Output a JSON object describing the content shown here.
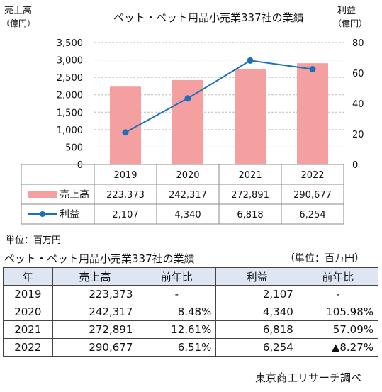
{
  "header": {
    "left_axis_title": "売上高",
    "left_axis_unit": "（億円）",
    "right_axis_title": "利益",
    "right_axis_unit": "（億円）"
  },
  "chart_data": {
    "type": "bar",
    "title": "ペット・ペット用品小売業337社の業績",
    "categories": [
      "2019",
      "2020",
      "2021",
      "2022"
    ],
    "left_axis": {
      "ticks": [
        "0",
        "500",
        "1,000",
        "1,500",
        "2,000",
        "2,500",
        "3,000",
        "3,500"
      ],
      "range": [
        0,
        3500
      ]
    },
    "right_axis": {
      "ticks": [
        "0",
        "20",
        "40",
        "60",
        "80"
      ],
      "range": [
        0,
        80
      ]
    },
    "series": [
      {
        "name": "売上高",
        "kind": "bar",
        "axis": "left",
        "color": "#f4a0a0",
        "values": [
          2233.73,
          2423.17,
          2728.91,
          2906.77
        ],
        "labels": [
          "223,373",
          "242,317",
          "272,891",
          "290,677"
        ]
      },
      {
        "name": "利益",
        "kind": "line",
        "axis": "right",
        "color": "#1f6fb8",
        "values": [
          21.07,
          43.4,
          68.18,
          62.54
        ],
        "labels": [
          "2,107",
          "4,340",
          "6,818",
          "6,254"
        ]
      }
    ],
    "grid": true,
    "unit_note": "単位：百万円"
  },
  "table": {
    "title": "ペット・ペット用品小売業337社の業績",
    "unit": "（単位：百万円）",
    "headers": [
      "年",
      "売上高",
      "前年比",
      "利益",
      "前年比"
    ],
    "rows": [
      [
        "2019",
        "223,373",
        "-",
        "2,107",
        "-"
      ],
      [
        "2020",
        "242,317",
        "8.48%",
        "4,340",
        "105.98%"
      ],
      [
        "2021",
        "272,891",
        "12.61%",
        "6,818",
        "57.09%"
      ],
      [
        "2022",
        "290,677",
        "6.51%",
        "6,254",
        "▲8.27%"
      ]
    ]
  },
  "source": "東京商工リサーチ調べ"
}
